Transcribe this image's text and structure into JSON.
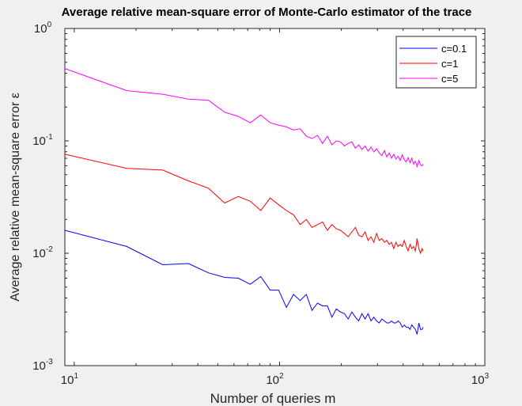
{
  "chart_data": {
    "type": "line",
    "title": "Average relative mean-square error of Monte-Carlo estimator of the trace",
    "xlabel": "Number of queries m",
    "ylabel": "Average relative mean-square error ε",
    "xscale": "log",
    "yscale": "log",
    "xlim": [
      9,
      1000
    ],
    "ylim": [
      0.001,
      1
    ],
    "grid": false,
    "legend_position": "top-right",
    "x_ticks": [
      {
        "value": 10,
        "base": "10",
        "exp": "1"
      },
      {
        "value": 100,
        "base": "10",
        "exp": "2"
      },
      {
        "value": 1000,
        "base": "10",
        "exp": "3"
      }
    ],
    "y_ticks": [
      {
        "value": 0.001,
        "base": "10",
        "exp": "-3"
      },
      {
        "value": 0.01,
        "base": "10",
        "exp": "-2"
      },
      {
        "value": 0.1,
        "base": "10",
        "exp": "-1"
      },
      {
        "value": 1,
        "base": "10",
        "exp": "0"
      }
    ],
    "series": [
      {
        "name": "c=0.1",
        "color": "#0000ff",
        "x": [
          9,
          18,
          27,
          36,
          45,
          54,
          63,
          72,
          81,
          90,
          99,
          108,
          117,
          126,
          135,
          144,
          153,
          162,
          171,
          180,
          189,
          198,
          207,
          216,
          225,
          234,
          243,
          252,
          261,
          270,
          279,
          288,
          297,
          306,
          315,
          324,
          333,
          342,
          351,
          360,
          369,
          378,
          387,
          396,
          405,
          414,
          423,
          432,
          441,
          450,
          459,
          468,
          477,
          486,
          495,
          500
        ],
        "y": [
          0.016,
          0.0115,
          0.0079,
          0.0081,
          0.0067,
          0.0061,
          0.006,
          0.0053,
          0.0062,
          0.0047,
          0.0047,
          0.0033,
          0.0043,
          0.0038,
          0.0043,
          0.0031,
          0.0036,
          0.0034,
          0.0034,
          0.0027,
          0.0032,
          0.003,
          0.0029,
          0.0026,
          0.003,
          0.0027,
          0.0025,
          0.0029,
          0.0026,
          0.0029,
          0.0025,
          0.0027,
          0.0025,
          0.0024,
          0.0026,
          0.0025,
          0.0024,
          0.0024,
          0.0025,
          0.0024,
          0.0024,
          0.0025,
          0.0024,
          0.0022,
          0.0023,
          0.0022,
          0.0022,
          0.0021,
          0.0023,
          0.0022,
          0.0021,
          0.0019,
          0.0024,
          0.0021,
          0.0021,
          0.0022
        ]
      },
      {
        "name": "c=1",
        "color": "#ff0000",
        "x": [
          9,
          18,
          27,
          36,
          45,
          54,
          63,
          72,
          81,
          90,
          99,
          108,
          117,
          126,
          135,
          144,
          153,
          162,
          171,
          180,
          189,
          198,
          207,
          216,
          225,
          234,
          243,
          252,
          261,
          270,
          279,
          288,
          297,
          306,
          315,
          324,
          333,
          342,
          351,
          360,
          369,
          378,
          387,
          396,
          405,
          414,
          423,
          432,
          441,
          450,
          459,
          468,
          477,
          486,
          495,
          500
        ],
        "y": [
          0.076,
          0.057,
          0.055,
          0.044,
          0.038,
          0.028,
          0.032,
          0.029,
          0.024,
          0.031,
          0.027,
          0.024,
          0.022,
          0.018,
          0.02,
          0.017,
          0.018,
          0.019,
          0.016,
          0.018,
          0.0165,
          0.016,
          0.015,
          0.014,
          0.0155,
          0.017,
          0.0145,
          0.014,
          0.0155,
          0.013,
          0.014,
          0.0125,
          0.015,
          0.013,
          0.0135,
          0.0125,
          0.013,
          0.012,
          0.0125,
          0.011,
          0.0125,
          0.0115,
          0.012,
          0.0115,
          0.013,
          0.0115,
          0.0105,
          0.012,
          0.011,
          0.0115,
          0.0105,
          0.0135,
          0.011,
          0.01,
          0.011,
          0.0105
        ]
      },
      {
        "name": "c=5",
        "color": "#ff00ff",
        "x": [
          9,
          18,
          27,
          36,
          45,
          54,
          63,
          72,
          81,
          90,
          99,
          108,
          117,
          126,
          135,
          144,
          153,
          162,
          171,
          180,
          189,
          198,
          207,
          216,
          225,
          234,
          243,
          252,
          261,
          270,
          279,
          288,
          297,
          306,
          315,
          324,
          333,
          342,
          351,
          360,
          369,
          378,
          387,
          396,
          405,
          414,
          423,
          432,
          441,
          450,
          459,
          468,
          477,
          486,
          495,
          500
        ],
        "y": [
          0.44,
          0.28,
          0.26,
          0.235,
          0.23,
          0.18,
          0.165,
          0.145,
          0.17,
          0.145,
          0.138,
          0.133,
          0.125,
          0.128,
          0.11,
          0.105,
          0.112,
          0.095,
          0.11,
          0.092,
          0.1,
          0.098,
          0.09,
          0.095,
          0.098,
          0.086,
          0.092,
          0.084,
          0.09,
          0.081,
          0.088,
          0.08,
          0.085,
          0.078,
          0.074,
          0.082,
          0.072,
          0.078,
          0.07,
          0.076,
          0.069,
          0.073,
          0.067,
          0.075,
          0.068,
          0.065,
          0.071,
          0.064,
          0.07,
          0.062,
          0.066,
          0.059,
          0.067,
          0.061,
          0.06,
          0.062
        ]
      }
    ]
  }
}
